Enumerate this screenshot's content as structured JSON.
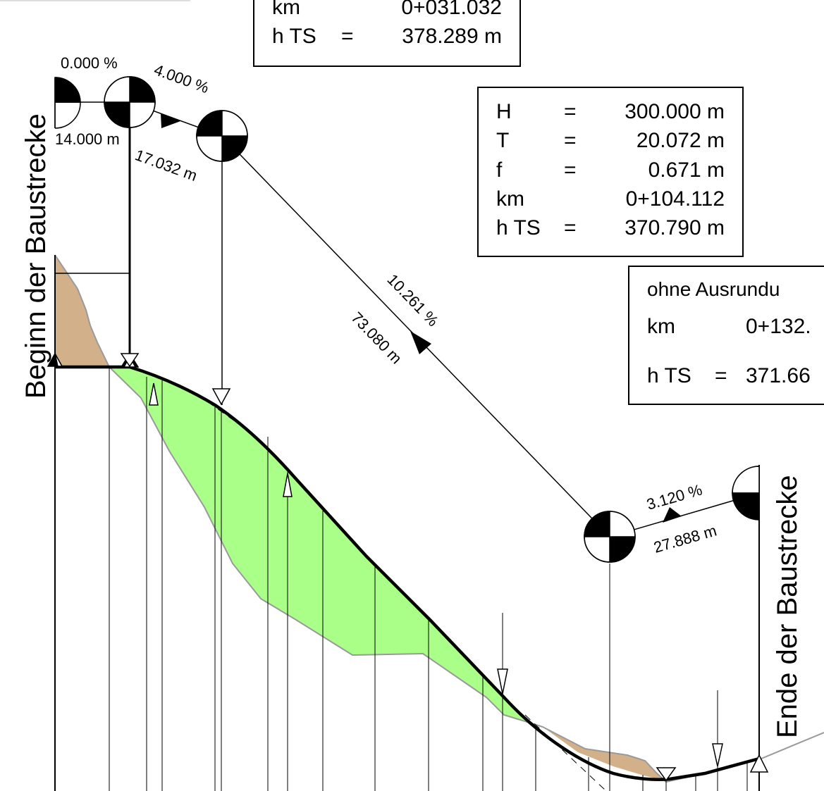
{
  "drawing": {
    "start_label": "Beginn der Baustrecke",
    "end_label": "Ende der Baustrecke"
  },
  "box_top": {
    "row_km": {
      "label": "km",
      "value": "0+031.032"
    },
    "row_hts": {
      "label": "h TS",
      "eq": "=",
      "value": "378.289 m"
    }
  },
  "box_curve": {
    "rows": [
      {
        "label": "H",
        "eq": "=",
        "value": "300.000 m"
      },
      {
        "label": "T",
        "eq": "=",
        "value": "20.072 m"
      },
      {
        "label": "f",
        "eq": "=",
        "value": "0.671 m"
      },
      {
        "label": "km",
        "eq": "",
        "value": "0+104.112"
      },
      {
        "label": "h TS",
        "eq": "=",
        "value": "370.790 m"
      }
    ]
  },
  "box_right": {
    "title": "ohne Ausrundu",
    "row_km": {
      "label": "km",
      "value": "0+132."
    },
    "row_hts": {
      "label": "h TS",
      "eq": "=",
      "value": "371.66"
    }
  },
  "segments": [
    {
      "grade": "0.000 %",
      "length": "14.000 m"
    },
    {
      "grade": "4.000 %",
      "length": "17.032 m"
    },
    {
      "grade": "10.261 %",
      "length": "73.080 m"
    },
    {
      "grade": "3.120 %",
      "length": "27.888 m"
    }
  ],
  "colors": {
    "fill_area": "#aaff88",
    "cut_area": "#d2b08a",
    "terrain_line": "#9a9a9a",
    "profile_line": "#000000"
  }
}
